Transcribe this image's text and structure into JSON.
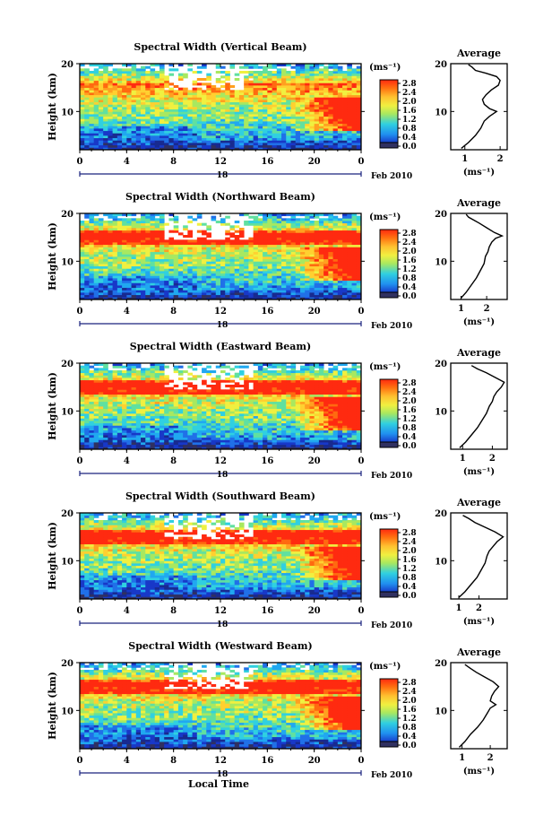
{
  "figure": {
    "date_label": "Feb 2010",
    "day_label": "18",
    "x_axis_title": "Local Time",
    "y_axis_title": "Height (km)",
    "unit_label": "(ms⁻¹)",
    "average_title": "Average",
    "average_unit_label": "(ms⁻¹)"
  },
  "colorbar": {
    "labels": [
      "2.8",
      "2.4",
      "2.0",
      "1.6",
      "1.2",
      "0.8",
      "0.4",
      "0.0"
    ],
    "colors": [
      "#ff2a10",
      "#ff6a10",
      "#ffa020",
      "#ffd030",
      "#f0f040",
      "#a8e860",
      "#60e0a0",
      "#30d0e0",
      "#20a8f0",
      "#2070e8",
      "#1838c8",
      "#182a90",
      "#303060"
    ]
  },
  "chart_data": [
    {
      "type": "heatmap",
      "title": "Spectral Width (Vertical Beam)",
      "xlabel": "Local Time",
      "ylabel": "Height (km)",
      "xlim": [
        0,
        24
      ],
      "ylim": [
        2,
        20
      ],
      "x_ticks": [
        "0",
        "4",
        "8",
        "12",
        "16",
        "20",
        "0"
      ],
      "y_ticks": [
        "20",
        "10"
      ],
      "colorbar_unit": "(ms⁻¹)",
      "colorbar_range": [
        0,
        2.8
      ],
      "average_profile": {
        "title": "Average",
        "xlabel": "(ms⁻¹)",
        "xlim": [
          0.6,
          2.2
        ],
        "x_ticks": [
          "1",
          "2"
        ],
        "y_ticks": [
          "20",
          "10"
        ],
        "points": [
          [
            0.9,
            2.3
          ],
          [
            1.1,
            3.5
          ],
          [
            1.3,
            5
          ],
          [
            1.45,
            6.5
          ],
          [
            1.55,
            8
          ],
          [
            1.7,
            9
          ],
          [
            1.9,
            10
          ],
          [
            1.7,
            10.6
          ],
          [
            1.55,
            11.5
          ],
          [
            1.5,
            12.5
          ],
          [
            1.6,
            13.5
          ],
          [
            1.75,
            14.5
          ],
          [
            1.95,
            15.5
          ],
          [
            2.0,
            16.5
          ],
          [
            1.9,
            17.3
          ],
          [
            1.6,
            18
          ],
          [
            1.3,
            18.6
          ],
          [
            1.2,
            19.3
          ],
          [
            1.1,
            19.8
          ]
        ]
      }
    },
    {
      "type": "heatmap",
      "title": "Spectral Width (Northward Beam)",
      "xlabel": "Local Time",
      "ylabel": "Height (km)",
      "xlim": [
        0,
        24
      ],
      "ylim": [
        2,
        20
      ],
      "x_ticks": [
        "0",
        "4",
        "8",
        "12",
        "16",
        "20",
        "0"
      ],
      "y_ticks": [
        "20",
        "10"
      ],
      "colorbar_unit": "(ms⁻¹)",
      "colorbar_range": [
        0,
        2.8
      ],
      "average_profile": {
        "title": "Average",
        "xlabel": "(ms⁻¹)",
        "xlim": [
          0.6,
          2.8
        ],
        "x_ticks": [
          "1",
          "2"
        ],
        "y_ticks": [
          "20",
          "10"
        ],
        "points": [
          [
            1.0,
            2.3
          ],
          [
            1.2,
            3.5
          ],
          [
            1.4,
            5
          ],
          [
            1.6,
            6.5
          ],
          [
            1.75,
            8
          ],
          [
            1.9,
            9.5
          ],
          [
            1.95,
            11
          ],
          [
            2.05,
            12
          ],
          [
            2.1,
            13
          ],
          [
            2.2,
            14
          ],
          [
            2.35,
            14.8
          ],
          [
            2.6,
            15.3
          ],
          [
            2.3,
            16
          ],
          [
            2.0,
            17
          ],
          [
            1.7,
            18
          ],
          [
            1.5,
            18.6
          ],
          [
            1.3,
            19.2
          ],
          [
            1.2,
            19.8
          ]
        ]
      }
    },
    {
      "type": "heatmap",
      "title": "Spectral Width (Eastward Beam)",
      "xlabel": "Local Time",
      "ylabel": "Height (km)",
      "xlim": [
        0,
        24
      ],
      "ylim": [
        2,
        20
      ],
      "x_ticks": [
        "0",
        "4",
        "8",
        "12",
        "16",
        "20",
        "0"
      ],
      "y_ticks": [
        "20",
        "10"
      ],
      "colorbar_unit": "(ms⁻¹)",
      "colorbar_range": [
        0,
        2.8
      ],
      "average_profile": {
        "title": "Average",
        "xlabel": "(ms⁻¹)",
        "xlim": [
          0.6,
          2.5
        ],
        "x_ticks": [
          "1",
          "2"
        ],
        "y_ticks": [
          "20",
          "10"
        ],
        "points": [
          [
            0.9,
            2.3
          ],
          [
            1.1,
            3.5
          ],
          [
            1.3,
            5
          ],
          [
            1.5,
            6.5
          ],
          [
            1.65,
            8
          ],
          [
            1.8,
            9.5
          ],
          [
            1.9,
            11
          ],
          [
            2.0,
            12
          ],
          [
            2.05,
            13
          ],
          [
            2.15,
            14
          ],
          [
            2.3,
            15
          ],
          [
            2.4,
            16
          ],
          [
            2.1,
            17
          ],
          [
            1.8,
            18
          ],
          [
            1.5,
            18.8
          ],
          [
            1.3,
            19.5
          ]
        ]
      }
    },
    {
      "type": "heatmap",
      "title": "Spectral Width (Southward Beam)",
      "xlabel": "Local Time",
      "ylabel": "Height (km)",
      "xlim": [
        0,
        24
      ],
      "ylim": [
        2,
        20
      ],
      "x_ticks": [
        "0",
        "4",
        "8",
        "12",
        "16",
        "20",
        "0"
      ],
      "y_ticks": [
        "20",
        "10"
      ],
      "colorbar_unit": "(ms⁻¹)",
      "colorbar_range": [
        0,
        2.8
      ],
      "average_profile": {
        "title": "Average",
        "xlabel": "(ms⁻¹)",
        "xlim": [
          0.6,
          3.4
        ],
        "x_ticks": [
          "1",
          "2"
        ],
        "y_ticks": [
          "20",
          "10"
        ],
        "points": [
          [
            1.0,
            2.3
          ],
          [
            1.3,
            3.5
          ],
          [
            1.6,
            5
          ],
          [
            1.9,
            6.5
          ],
          [
            2.1,
            8
          ],
          [
            2.3,
            9.5
          ],
          [
            2.4,
            11
          ],
          [
            2.5,
            12
          ],
          [
            2.7,
            13
          ],
          [
            2.9,
            14
          ],
          [
            3.2,
            15
          ],
          [
            2.8,
            16
          ],
          [
            2.3,
            17
          ],
          [
            1.8,
            18
          ],
          [
            1.5,
            18.8
          ],
          [
            1.2,
            19.5
          ]
        ]
      }
    },
    {
      "type": "heatmap",
      "title": "Spectral Width (Westward Beam)",
      "xlabel": "Local Time",
      "ylabel": "Height (km)",
      "xlim": [
        0,
        24
      ],
      "ylim": [
        2,
        20
      ],
      "x_ticks": [
        "0",
        "4",
        "8",
        "12",
        "16",
        "20",
        "0"
      ],
      "y_ticks": [
        "20",
        "10"
      ],
      "colorbar_unit": "(ms⁻¹)",
      "colorbar_range": [
        0,
        2.8
      ],
      "average_profile": {
        "title": "Average",
        "xlabel": "(ms⁻¹)",
        "xlim": [
          0.6,
          2.6
        ],
        "x_ticks": [
          "1",
          "2"
        ],
        "y_ticks": [
          "20",
          "10"
        ],
        "points": [
          [
            0.9,
            2.3
          ],
          [
            1.1,
            3.5
          ],
          [
            1.3,
            5
          ],
          [
            1.55,
            6.5
          ],
          [
            1.75,
            8
          ],
          [
            1.9,
            9.5
          ],
          [
            2.0,
            10.5
          ],
          [
            2.2,
            11.2
          ],
          [
            2.0,
            12
          ],
          [
            2.05,
            13
          ],
          [
            2.15,
            14
          ],
          [
            2.3,
            15
          ],
          [
            2.1,
            16
          ],
          [
            1.8,
            17
          ],
          [
            1.5,
            18
          ],
          [
            1.3,
            18.8
          ],
          [
            1.1,
            19.6
          ]
        ]
      }
    }
  ]
}
